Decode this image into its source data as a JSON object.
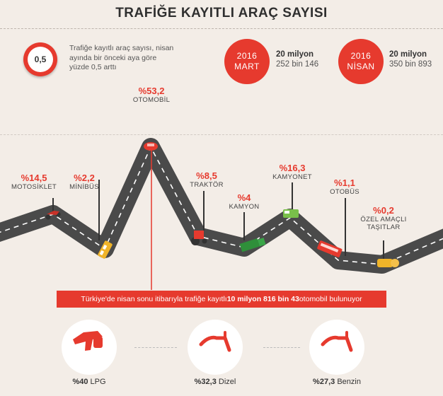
{
  "title": "TRAFİĞE KAYITLI ARAÇ SAYISI",
  "summary": {
    "badge_value": "0,5",
    "text": "Trafiğe kayıtlı araç sayısı, nisan ayında bir önceki aya göre yüzde 0,5 arttı"
  },
  "months": [
    {
      "year": "2016",
      "month": "MART",
      "line1": "20 milyon",
      "line2": "252 bin 146"
    },
    {
      "year": "2016",
      "month": "NİSAN",
      "line1": "20 milyon",
      "line2": "350 bin 893"
    }
  ],
  "categories": [
    {
      "pct": "%14,5",
      "label": "MOTOSİKLET"
    },
    {
      "pct": "%2,2",
      "label": "MİNİBÜS"
    },
    {
      "pct": "%53,2",
      "label": "OTOMOBİL"
    },
    {
      "pct": "%8,5",
      "label": "TRAKTÖR"
    },
    {
      "pct": "%4",
      "label": "KAMYON"
    },
    {
      "pct": "%16,3",
      "label": "KAMYONET"
    },
    {
      "pct": "%1,1",
      "label": "OTOBÜS"
    },
    {
      "pct": "%0,2",
      "label": "ÖZEL AMAÇLI TAŞITLAR"
    }
  ],
  "banner": {
    "pre": "Türkiye'de nisan sonu itibarıyla trafiğe kayıtlı ",
    "bold": "10 milyon 816 bin 43",
    "post": " otomobil bulunuyor"
  },
  "fuels": [
    {
      "pct": "%40",
      "label": "LPG"
    },
    {
      "pct": "%32,3",
      "label": "Dizel"
    },
    {
      "pct": "%27,3",
      "label": "Benzin"
    }
  ],
  "colors": {
    "accent": "#e63a2e",
    "road": "#4a4a4a",
    "background": "#f3ede7"
  }
}
